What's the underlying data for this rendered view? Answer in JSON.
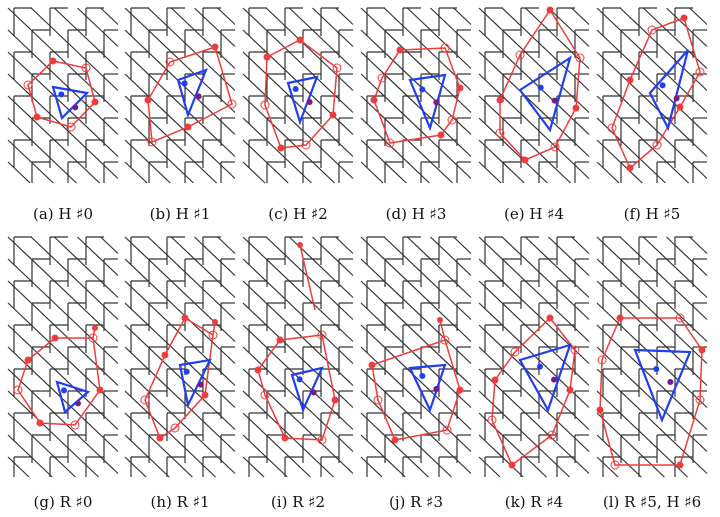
{
  "figure": {
    "panels": [
      {
        "id": "a",
        "caption": "(a) H ♯0"
      },
      {
        "id": "b",
        "caption": "(b) H ♯1"
      },
      {
        "id": "c",
        "caption": "(c) H ♯2"
      },
      {
        "id": "d",
        "caption": "(d) H ♯3"
      },
      {
        "id": "e",
        "caption": "(e) H ♯4"
      },
      {
        "id": "f",
        "caption": "(f) H ♯5"
      },
      {
        "id": "g",
        "caption": "(g) R ♯0"
      },
      {
        "id": "h",
        "caption": "(h) R ♯1"
      },
      {
        "id": "i",
        "caption": "(i) R ♯2"
      },
      {
        "id": "j",
        "caption": "(j) R ♯3"
      },
      {
        "id": "k",
        "caption": "(k) R ♯4"
      },
      {
        "id": "l",
        "caption": "(l) R ♯5, H ♯6"
      }
    ],
    "colors": {
      "polygon": "#f03c3c",
      "triangle": "#1f3ff0",
      "lattice": "#333333",
      "marker": "#7a1a8a"
    }
  }
}
